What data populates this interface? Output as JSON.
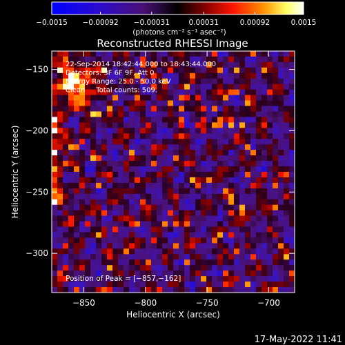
{
  "chart_data": {
    "type": "heatmap",
    "title": "Reconstructed RHESSI Image",
    "xlabel": "Heliocentric X (arcsec)",
    "ylabel": "Heliocentric Y (arcsec)",
    "xlim": [
      -876,
      -679
    ],
    "ylim": [
      -332,
      -135
    ],
    "x_ticks": [
      -850,
      -800,
      -750,
      -700
    ],
    "x_tick_labels": [
      "−850",
      "−800",
      "−750",
      "−700"
    ],
    "y_ticks": [
      -150,
      -200,
      -250,
      -300
    ],
    "y_tick_labels": [
      "−150",
      "−200",
      "−250",
      "−300"
    ],
    "colorbar": {
      "range": [
        -0.0015,
        0.0015
      ],
      "ticks": [
        -0.0015,
        -0.00092,
        -0.00031,
        0.00031,
        0.00092,
        0.0015
      ],
      "tick_labels": [
        "−0.0015",
        "−0.00092",
        "−0.00031",
        "0.00031",
        "0.00092",
        "0.0015"
      ],
      "unit_label": "(photons cm⁻² s⁻¹ asec⁻²)",
      "colors": [
        "#0000ff",
        "#3a0aa8",
        "#5a1070",
        "#000000",
        "#8a0000",
        "#ff1a00",
        "#ff9a00",
        "#ffff80",
        "#ffffff"
      ]
    },
    "annotations": [
      "22-Sep-2014 18:42:44.000 to 18:43:44.000",
      "Detectors: 3F 6F 9F, Att 0",
      "Energy Range: 25.0 - 50.0 keV",
      "Clean     Total counts: 509."
    ],
    "peak_label": "Position of Peak = [−857,−162]",
    "peak": [
      -857,
      -162
    ],
    "grid": false
  },
  "footer": {
    "timestamp": "17-May-2022 11:41"
  }
}
